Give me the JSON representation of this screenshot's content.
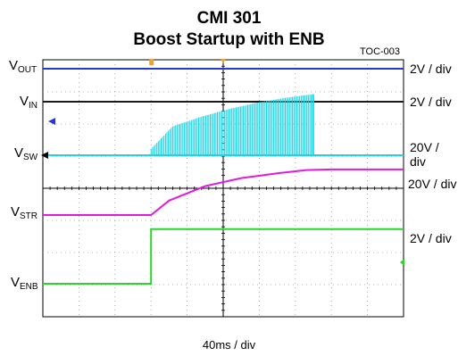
{
  "chart_data": {
    "type": "line",
    "title": "CMI 301",
    "subtitle": "Boost Startup with ENB",
    "tag": "TOC-003",
    "xlabel": "40ms / div",
    "x_divisions": 10,
    "y_divisions": 8,
    "event_time_div": 3.0,
    "series": [
      {
        "name": "VOUT",
        "name_main": "V",
        "name_sub": "OUT",
        "scale": "2V / div",
        "color": "#2438d8",
        "x": [
          0,
          10
        ],
        "y": [
          0,
          0
        ]
      },
      {
        "name": "VIN",
        "name_main": "V",
        "name_sub": "IN",
        "scale": "2V / div",
        "color": "#1a1a1a",
        "x": [
          0,
          10
        ],
        "y": [
          0,
          0
        ]
      },
      {
        "name": "VSW",
        "name_main": "V",
        "name_sub": "SW",
        "scale": "20V / div",
        "color": "#1fd3e3",
        "x": [
          0,
          3.0,
          3.6,
          4.4,
          5.2,
          6.0,
          6.8,
          7.5
        ],
        "y": [
          0,
          0.2,
          0.9,
          1.2,
          1.45,
          1.65,
          1.8,
          1.9
        ]
      },
      {
        "name": "VSTR",
        "name_main": "V",
        "name_sub": "STR",
        "scale": "20V / div",
        "color": "#e01be0",
        "x": [
          0,
          3.0,
          3.5,
          4.5,
          5.5,
          6.5,
          7.3,
          8.0,
          10
        ],
        "y": [
          0,
          0,
          0.45,
          0.9,
          1.15,
          1.3,
          1.4,
          1.42,
          1.42
        ]
      },
      {
        "name": "VENB",
        "name_main": "V",
        "name_sub": "ENB",
        "scale": "2V / div",
        "color": "#2bd62b",
        "x": [
          0,
          3.0,
          3.0,
          10
        ],
        "y": [
          0,
          0,
          1.7,
          1.7
        ]
      }
    ]
  }
}
